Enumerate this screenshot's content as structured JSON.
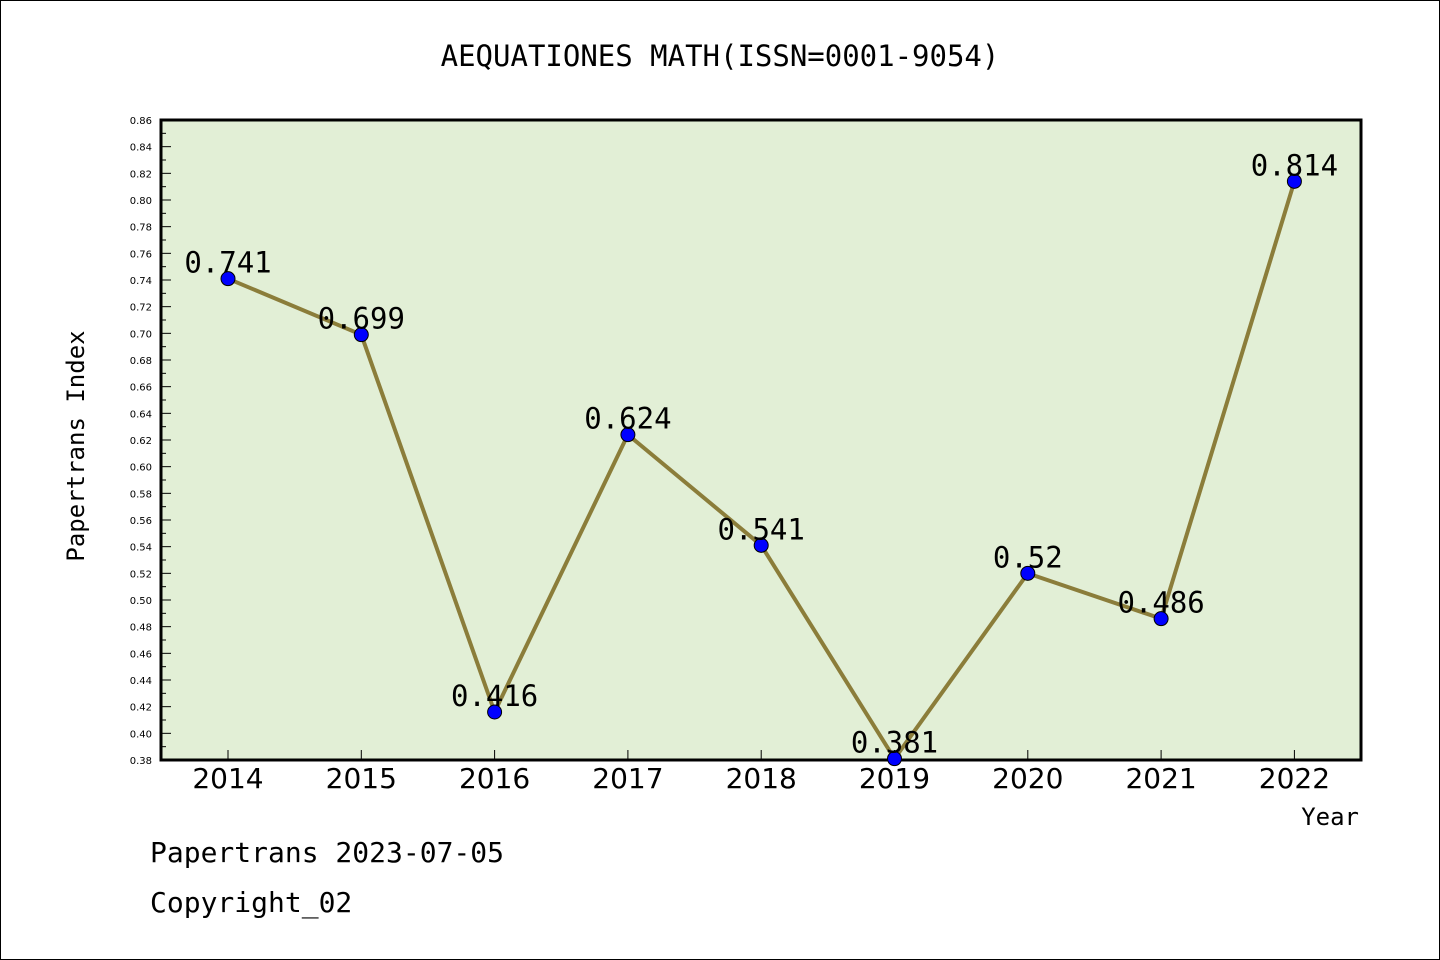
{
  "chart_data": {
    "type": "line",
    "title": "AEQUATIONES MATH(ISSN=0001-9054)",
    "xlabel": "Year",
    "ylabel": "Papertrans Index",
    "categories": [
      "2014",
      "2015",
      "2016",
      "2017",
      "2018",
      "2019",
      "2020",
      "2021",
      "2022"
    ],
    "series": [
      {
        "values": [
          0.741,
          0.699,
          0.416,
          0.624,
          0.541,
          0.381,
          0.52,
          0.486,
          0.814
        ],
        "labels": [
          "0.741",
          "0.699",
          "0.416",
          "0.624",
          "0.541",
          "0.381",
          "0.52",
          "0.486",
          "0.814"
        ]
      }
    ],
    "ylim": [
      0.38,
      0.86
    ],
    "yticks": [
      "0.38",
      "0.40",
      "0.42",
      "0.44",
      "0.46",
      "0.48",
      "0.50",
      "0.52",
      "0.54",
      "0.56",
      "0.58",
      "0.60",
      "0.62",
      "0.64",
      "0.66",
      "0.68",
      "0.70",
      "0.72",
      "0.74",
      "0.76",
      "0.78",
      "0.80",
      "0.82",
      "0.84",
      "0.86"
    ],
    "grid": false,
    "colors": {
      "plot_bg": "#e2efd6",
      "line": "#8b7d3a",
      "marker": "#0000ff"
    }
  },
  "footer": {
    "line1": "Papertrans 2023-07-05",
    "line2": "Copyright_02"
  }
}
